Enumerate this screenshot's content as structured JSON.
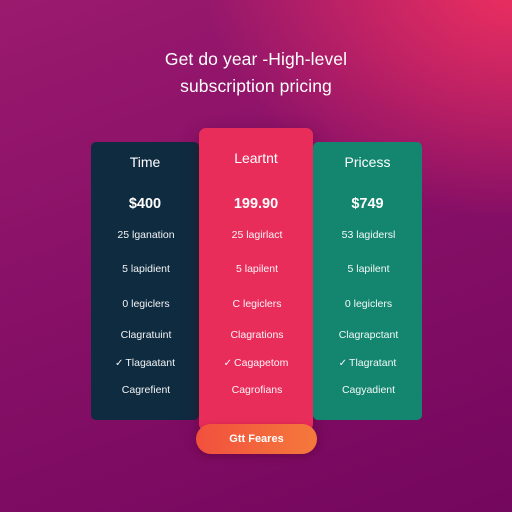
{
  "headline": {
    "line1": "Get do year -High-level",
    "line2": "subscription pricing"
  },
  "plans": [
    {
      "name": "Time",
      "price": "$400",
      "features": [
        {
          "check": "",
          "text": "25 lganation"
        },
        {
          "check": "",
          "text": "5 lapidient"
        },
        {
          "check": "",
          "text": "0 legiclers"
        },
        {
          "check": "",
          "text": "Clagratuint"
        },
        {
          "check": "✓",
          "text": "Tlagaatant"
        },
        {
          "check": "",
          "text": "Cagrefient"
        }
      ],
      "color": "#0f2b40"
    },
    {
      "name": "Leartnt",
      "price": "199.90",
      "features": [
        {
          "check": "",
          "text": "25 lagirlact"
        },
        {
          "check": "",
          "text": "5 lapilent"
        },
        {
          "check": "",
          "text": "C legiclers"
        },
        {
          "check": "",
          "text": "Clagrations"
        },
        {
          "check": "✓",
          "text": "Cagapetom"
        },
        {
          "check": "",
          "text": "Cagrofians"
        }
      ],
      "color": "#e92d5b"
    },
    {
      "name": "Pricess",
      "price": "$749",
      "features": [
        {
          "check": "",
          "text": "53 lagidersl"
        },
        {
          "check": "",
          "text": "5 lapilent"
        },
        {
          "check": "",
          "text": "0 legiclers"
        },
        {
          "check": "",
          "text": "Clagrapctant"
        },
        {
          "check": "✓",
          "text": "Tlagratant"
        },
        {
          "check": "",
          "text": "Cagyadient"
        }
      ],
      "color": "#14866f"
    }
  ],
  "cta": {
    "label": "Gtt Feares",
    "color": "#f2503d"
  }
}
